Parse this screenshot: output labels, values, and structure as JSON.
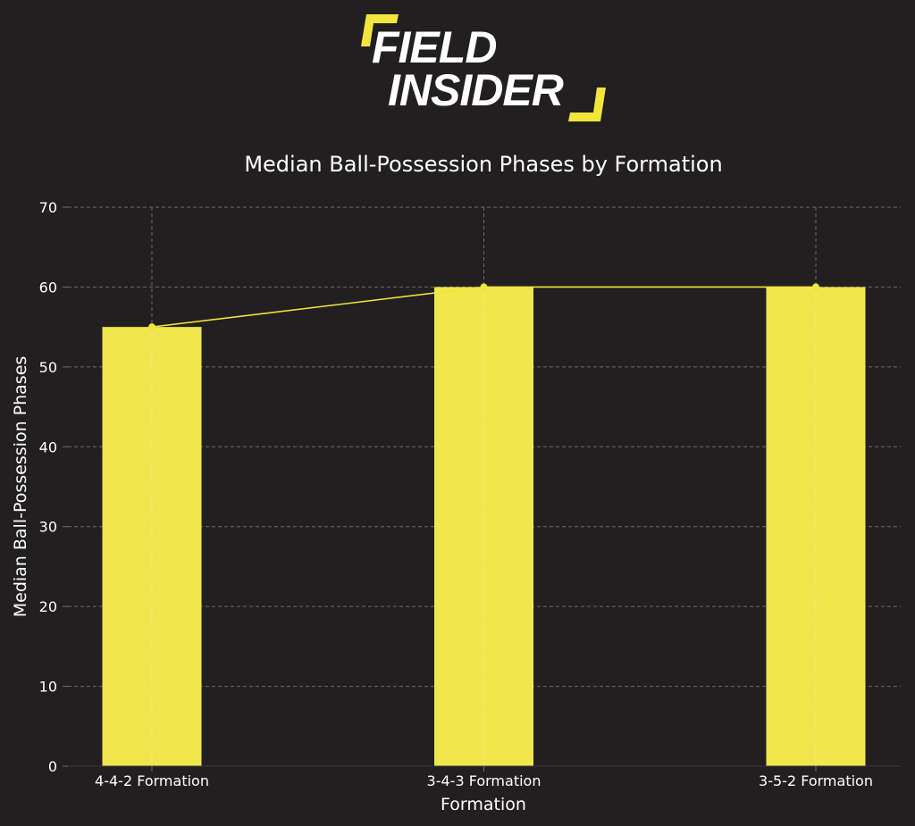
{
  "brand": {
    "line1": "FIELD",
    "line2": "INSIDER",
    "accent_color": "#f2e53c"
  },
  "colors": {
    "background": "#221f20",
    "bar": "#f7ec50",
    "line": "#f2e53c",
    "grid": "#6e6b6c",
    "text": "#ffffff"
  },
  "chart_data": {
    "type": "bar",
    "title": "Median Ball-Possession Phases by Formation",
    "xlabel": "Formation",
    "ylabel": "Median Ball-Possession Phases",
    "categories": [
      "4-4-2 Formation",
      "3-4-3 Formation",
      "3-5-2 Formation"
    ],
    "values": [
      55,
      60,
      60
    ],
    "overlay_line": true,
    "ylim": [
      0,
      70
    ],
    "yticks": [
      0,
      10,
      20,
      30,
      40,
      50,
      60,
      70
    ],
    "grid": true,
    "grid_style": "dashed"
  }
}
